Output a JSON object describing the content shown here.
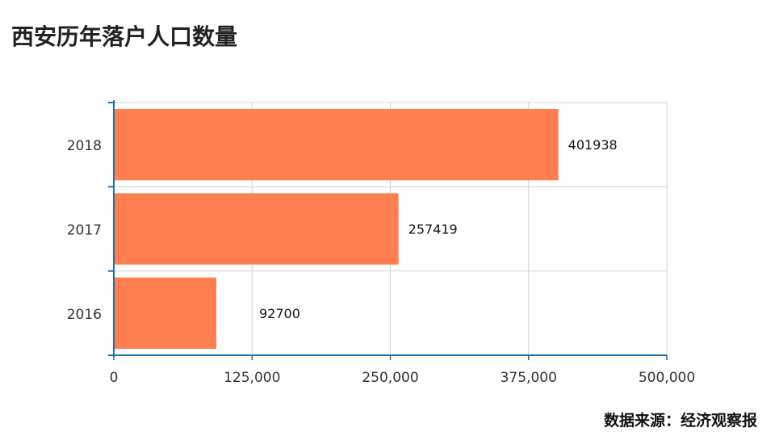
{
  "title": "西安历年落户人口数量",
  "source": "数据来源：经济观察报",
  "colors": {
    "bar": "#ff7f50",
    "grid": "#d0d0d0",
    "axis": "#1a6fb0"
  },
  "chart_data": {
    "type": "bar",
    "orientation": "horizontal",
    "categories": [
      "2018",
      "2017",
      "2016"
    ],
    "values": [
      401938,
      257419,
      92700
    ],
    "title": "西安历年落户人口数量",
    "xlabel": "",
    "ylabel": "",
    "xlim": [
      0,
      500000
    ],
    "xticks": [
      "0",
      "125,000",
      "250,000",
      "375,000",
      "500,000"
    ],
    "grid": true,
    "legend": "none"
  }
}
